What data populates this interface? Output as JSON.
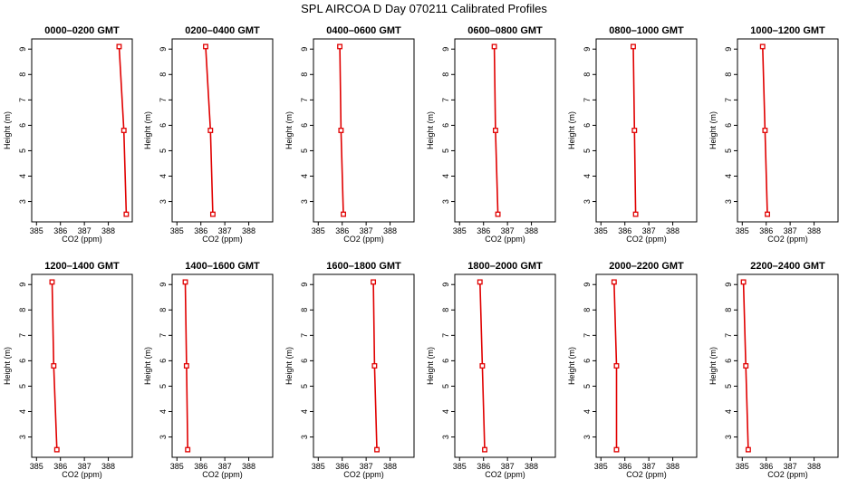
{
  "figure": {
    "title": "SPL AIRCOA D  Day 070211  Calibrated Profiles"
  },
  "style": {
    "line_color": "#e00000",
    "marker_color": "#e00000",
    "axis_color": "#000000"
  },
  "chart_data": [
    {
      "type": "line",
      "title": "0000–0200 GMT",
      "xlabel": "CO2 (ppm)",
      "ylabel": "Height (m)",
      "xlim": [
        384.8,
        389.0
      ],
      "ylim": [
        2.2,
        9.4
      ],
      "xticks": [
        385,
        386,
        387,
        388
      ],
      "yticks": [
        3,
        4,
        5,
        6,
        7,
        8,
        9
      ],
      "series": [
        {
          "x": [
            388.75,
            388.65,
            388.45
          ],
          "y": [
            2.5,
            5.8,
            9.1
          ]
        }
      ]
    },
    {
      "type": "line",
      "title": "0200–0400 GMT",
      "xlabel": "CO2 (ppm)",
      "ylabel": "Height (m)",
      "xlim": [
        384.8,
        389.0
      ],
      "ylim": [
        2.2,
        9.4
      ],
      "xticks": [
        385,
        386,
        387,
        388
      ],
      "yticks": [
        3,
        4,
        5,
        6,
        7,
        8,
        9
      ],
      "series": [
        {
          "x": [
            386.5,
            386.4,
            386.2
          ],
          "y": [
            2.5,
            5.8,
            9.1
          ]
        }
      ]
    },
    {
      "type": "line",
      "title": "0400–0600 GMT",
      "xlabel": "CO2 (ppm)",
      "ylabel": "Height (m)",
      "xlim": [
        384.8,
        389.0
      ],
      "ylim": [
        2.2,
        9.4
      ],
      "xticks": [
        385,
        386,
        387,
        388
      ],
      "yticks": [
        3,
        4,
        5,
        6,
        7,
        8,
        9
      ],
      "series": [
        {
          "x": [
            386.05,
            385.95,
            385.9
          ],
          "y": [
            2.5,
            5.8,
            9.1
          ]
        }
      ]
    },
    {
      "type": "line",
      "title": "0600–0800 GMT",
      "xlabel": "CO2 (ppm)",
      "ylabel": "Height (m)",
      "xlim": [
        384.8,
        389.0
      ],
      "ylim": [
        2.2,
        9.4
      ],
      "xticks": [
        385,
        386,
        387,
        388
      ],
      "yticks": [
        3,
        4,
        5,
        6,
        7,
        8,
        9
      ],
      "series": [
        {
          "x": [
            386.6,
            386.5,
            386.45
          ],
          "y": [
            2.5,
            5.8,
            9.1
          ]
        }
      ]
    },
    {
      "type": "line",
      "title": "0800–1000 GMT",
      "xlabel": "CO2 (ppm)",
      "ylabel": "Height (m)",
      "xlim": [
        384.8,
        389.0
      ],
      "ylim": [
        2.2,
        9.4
      ],
      "xticks": [
        385,
        386,
        387,
        388
      ],
      "yticks": [
        3,
        4,
        5,
        6,
        7,
        8,
        9
      ],
      "series": [
        {
          "x": [
            386.45,
            386.4,
            386.35
          ],
          "y": [
            2.5,
            5.8,
            9.1
          ]
        }
      ]
    },
    {
      "type": "line",
      "title": "1000–1200 GMT",
      "xlabel": "CO2 (ppm)",
      "ylabel": "Height (m)",
      "xlim": [
        384.8,
        389.0
      ],
      "ylim": [
        2.2,
        9.4
      ],
      "xticks": [
        385,
        386,
        387,
        388
      ],
      "yticks": [
        3,
        4,
        5,
        6,
        7,
        8,
        9
      ],
      "series": [
        {
          "x": [
            386.05,
            385.95,
            385.85
          ],
          "y": [
            2.5,
            5.8,
            9.1
          ]
        }
      ]
    },
    {
      "type": "line",
      "title": "1200–1400 GMT",
      "xlabel": "CO2 (ppm)",
      "ylabel": "Height (m)",
      "xlim": [
        384.8,
        389.0
      ],
      "ylim": [
        2.2,
        9.4
      ],
      "xticks": [
        385,
        386,
        387,
        388
      ],
      "yticks": [
        3,
        4,
        5,
        6,
        7,
        8,
        9
      ],
      "series": [
        {
          "x": [
            385.85,
            385.72,
            385.65
          ],
          "y": [
            2.5,
            5.8,
            9.1
          ]
        }
      ]
    },
    {
      "type": "line",
      "title": "1400–1600 GMT",
      "xlabel": "CO2 (ppm)",
      "ylabel": "Height (m)",
      "xlim": [
        384.8,
        389.0
      ],
      "ylim": [
        2.2,
        9.4
      ],
      "xticks": [
        385,
        386,
        387,
        388
      ],
      "yticks": [
        3,
        4,
        5,
        6,
        7,
        8,
        9
      ],
      "series": [
        {
          "x": [
            385.45,
            385.4,
            385.35
          ],
          "y": [
            2.5,
            5.8,
            9.1
          ]
        }
      ]
    },
    {
      "type": "line",
      "title": "1600–1800 GMT",
      "xlabel": "CO2 (ppm)",
      "ylabel": "Height (m)",
      "xlim": [
        384.8,
        389.0
      ],
      "ylim": [
        2.2,
        9.4
      ],
      "xticks": [
        385,
        386,
        387,
        388
      ],
      "yticks": [
        3,
        4,
        5,
        6,
        7,
        8,
        9
      ],
      "series": [
        {
          "x": [
            387.45,
            387.35,
            387.3
          ],
          "y": [
            2.5,
            5.8,
            9.1
          ]
        }
      ]
    },
    {
      "type": "line",
      "title": "1800–2000 GMT",
      "xlabel": "CO2 (ppm)",
      "ylabel": "Height (m)",
      "xlim": [
        384.8,
        389.0
      ],
      "ylim": [
        2.2,
        9.4
      ],
      "xticks": [
        385,
        386,
        387,
        388
      ],
      "yticks": [
        3,
        4,
        5,
        6,
        7,
        8,
        9
      ],
      "series": [
        {
          "x": [
            386.05,
            385.95,
            385.85
          ],
          "y": [
            2.5,
            5.8,
            9.1
          ]
        }
      ]
    },
    {
      "type": "line",
      "title": "2000–2200 GMT",
      "xlabel": "CO2 (ppm)",
      "ylabel": "Height (m)",
      "xlim": [
        384.8,
        389.0
      ],
      "ylim": [
        2.2,
        9.4
      ],
      "xticks": [
        385,
        386,
        387,
        388
      ],
      "yticks": [
        3,
        4,
        5,
        6,
        7,
        8,
        9
      ],
      "series": [
        {
          "x": [
            385.65,
            385.65,
            385.55
          ],
          "y": [
            2.5,
            5.8,
            9.1
          ]
        }
      ]
    },
    {
      "type": "line",
      "title": "2200–2400 GMT",
      "xlabel": "CO2 (ppm)",
      "ylabel": "Height (m)",
      "xlim": [
        384.8,
        389.0
      ],
      "ylim": [
        2.2,
        9.4
      ],
      "xticks": [
        385,
        386,
        387,
        388
      ],
      "yticks": [
        3,
        4,
        5,
        6,
        7,
        8,
        9
      ],
      "series": [
        {
          "x": [
            385.25,
            385.15,
            385.05
          ],
          "y": [
            2.5,
            5.8,
            9.1
          ]
        }
      ]
    }
  ]
}
